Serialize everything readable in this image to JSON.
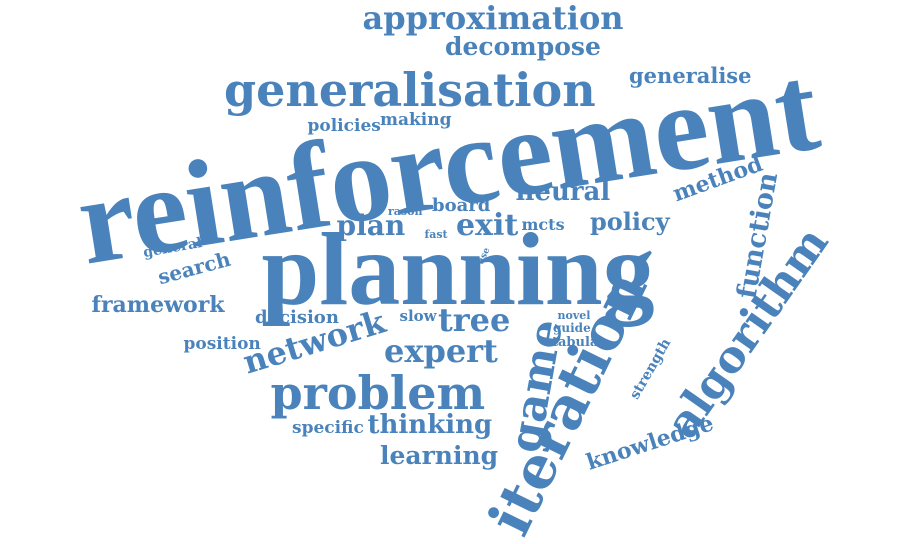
{
  "colors": {
    "word": "#4a83bb",
    "background": "#ffffff"
  },
  "words": {
    "reinforcement": "reinforcement",
    "planning": "planning",
    "generalisation": "generalisation",
    "approximation": "approximation",
    "decompose": "decompose",
    "generalise": "generalise",
    "iteration": "iteration",
    "algorithm": "algorithm",
    "problem": "problem",
    "game": "game",
    "network": "network",
    "expert": "expert",
    "tree": "tree",
    "function": "function",
    "neural": "neural",
    "method": "method",
    "policy": "policy",
    "exit": "exit",
    "plan": "plan",
    "board": "board",
    "rason": "rason",
    "fast": "fast",
    "mcts": "mcts",
    "policies": "policies",
    "making": "making",
    "general": "general",
    "search": "search",
    "framework": "framework",
    "use": "use",
    "decision": "decision",
    "slow": "slow",
    "novel": "novel",
    "guide": "guide",
    "tabula": "tabula",
    "strength": "strength",
    "position": "position",
    "thinking": "thinking",
    "specific": "specific",
    "learning": "learning",
    "knowledge": "knowledge"
  }
}
